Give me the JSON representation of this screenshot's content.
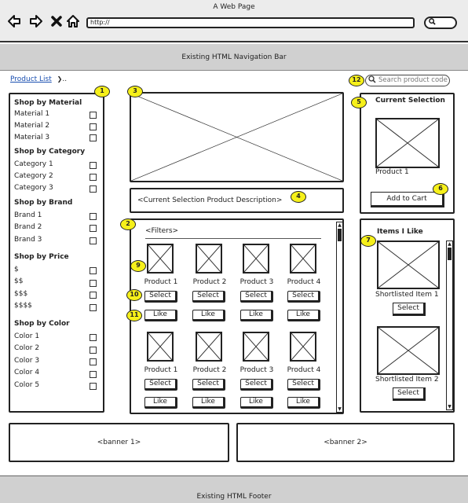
{
  "window": {
    "title": "A Web Page"
  },
  "browser": {
    "back_icon": "arrow-left-icon",
    "forward_icon": "arrow-right-icon",
    "stop_icon": "close-icon",
    "home_icon": "home-icon",
    "url": "http://",
    "search_icon": "search-icon"
  },
  "navbar": {
    "label": "Existing HTML Navigation Bar"
  },
  "breadcrumb": {
    "link": "Product List",
    "separator": "❯",
    "rest": ".."
  },
  "search": {
    "placeholder": "Search product code"
  },
  "callouts": [
    "1",
    "2",
    "3",
    "4",
    "5",
    "6",
    "7",
    "9",
    "10",
    "11",
    "12"
  ],
  "sidebar": {
    "sections": [
      {
        "title": "Shop by Material",
        "items": [
          "Material 1",
          "Material 2",
          "Material 3"
        ]
      },
      {
        "title": "Shop by Category",
        "items": [
          "Category 1",
          "Category 2",
          "Category 3"
        ]
      },
      {
        "title": "Shop by Brand",
        "items": [
          "Brand 1",
          "Brand 2",
          "Brand 3"
        ]
      },
      {
        "title": "Shop by Price",
        "items": [
          "$",
          "$$",
          "$$$",
          "$$$$"
        ]
      },
      {
        "title": "Shop by Color",
        "items": [
          "Color 1",
          "Color 2",
          "Color 3",
          "Color 4",
          "Color 5"
        ]
      }
    ]
  },
  "description": {
    "text": "<Current Selection Product Description>"
  },
  "grid": {
    "filters_label": "<Filters>",
    "rows": [
      {
        "products": [
          "Product 1",
          "Product 2",
          "Product 3",
          "Product 4"
        ]
      },
      {
        "products": [
          "Product 1",
          "Product 2",
          "Product 3",
          "Product 4"
        ]
      }
    ],
    "select_label": "Select",
    "like_label": "Like"
  },
  "current_selection": {
    "title": "Current Selection",
    "product_name": "Product 1",
    "add_to_cart": "Add to Cart"
  },
  "items_i_like": {
    "title": "Items I Like",
    "items": [
      "Shortlisted Item 1",
      "Shortlisted Item 2"
    ],
    "select_label": "Select"
  },
  "banners": [
    "<banner 1>",
    "<banner 2>"
  ],
  "footer": {
    "label": "Existing HTML Footer"
  }
}
